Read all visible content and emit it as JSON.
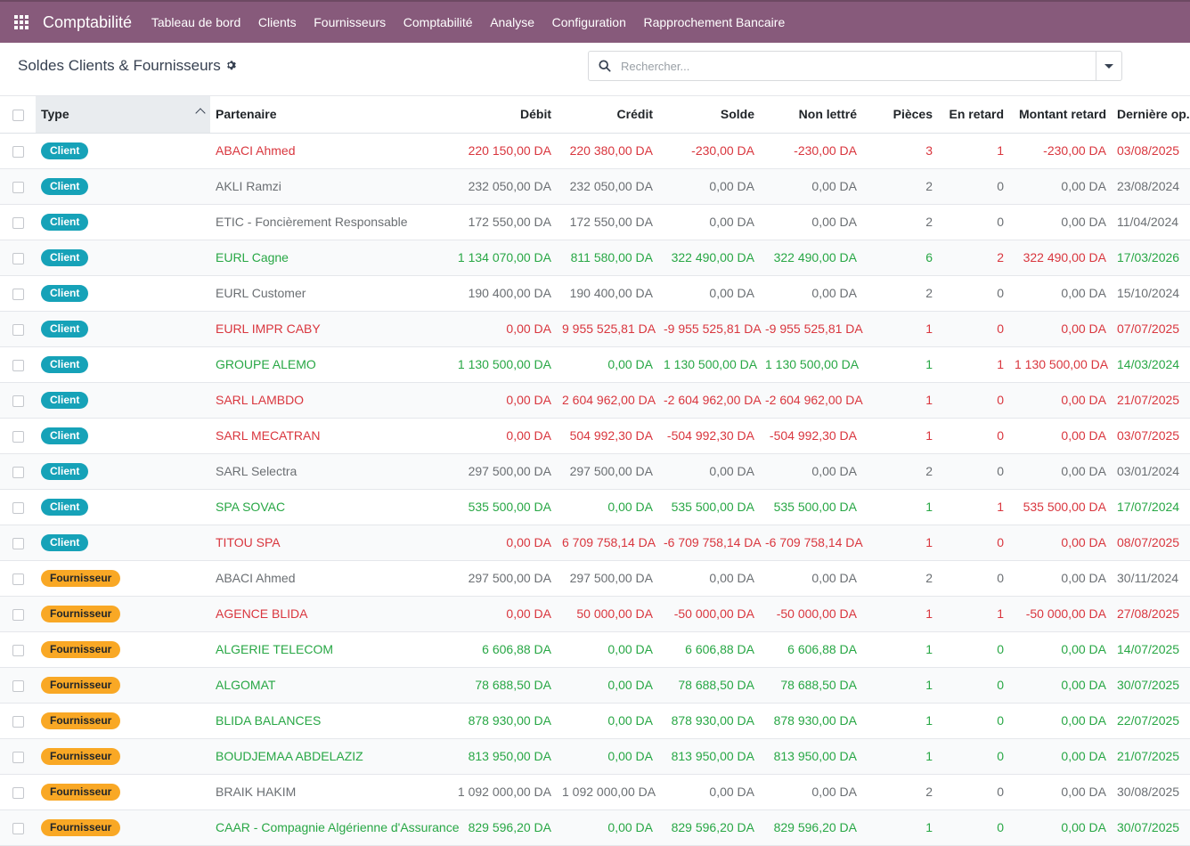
{
  "navbar": {
    "brand": "Comptabilité",
    "menu": [
      "Tableau de bord",
      "Clients",
      "Fournisseurs",
      "Comptabilité",
      "Analyse",
      "Configuration",
      "Rapprochement Bancaire"
    ],
    "color": "#875a7b"
  },
  "control": {
    "title": "Soldes Clients & Fournisseurs",
    "search_placeholder": "Rechercher..."
  },
  "table": {
    "columns": {
      "type": "Type",
      "partner": "Partenaire",
      "debit": "Débit",
      "credit": "Crédit",
      "solde": "Solde",
      "non_lettre": "Non lettré",
      "pieces": "Pièces",
      "en_retard": "En retard",
      "montant_retard": "Montant retard",
      "derniere_op": "Dernière op."
    },
    "status_colors": {
      "red": "#d9363e",
      "green": "#28a745",
      "muted": "#6b6f73"
    },
    "rows": [
      {
        "type": "Client",
        "kind": "client",
        "partner": "ABACI Ahmed",
        "debit": "220 150,00 DA",
        "credit": "220 380,00 DA",
        "solde": "-230,00 DA",
        "non_lettre": "-230,00 DA",
        "pieces": "3",
        "en_retard": "1",
        "montant_retard": "-230,00 DA",
        "derniere_op": "03/08/2025",
        "status": "red"
      },
      {
        "type": "Client",
        "kind": "client",
        "partner": "AKLI Ramzi",
        "debit": "232 050,00 DA",
        "credit": "232 050,00 DA",
        "solde": "0,00 DA",
        "non_lettre": "0,00 DA",
        "pieces": "2",
        "en_retard": "0",
        "montant_retard": "0,00 DA",
        "derniere_op": "23/08/2024",
        "status": "muted"
      },
      {
        "type": "Client",
        "kind": "client",
        "partner": "ETIC - Foncièrement Responsable",
        "debit": "172 550,00 DA",
        "credit": "172 550,00 DA",
        "solde": "0,00 DA",
        "non_lettre": "0,00 DA",
        "pieces": "2",
        "en_retard": "0",
        "montant_retard": "0,00 DA",
        "derniere_op": "11/04/2024",
        "status": "muted"
      },
      {
        "type": "Client",
        "kind": "client",
        "partner": "EURL Cagne",
        "debit": "1 134 070,00 DA",
        "credit": "811 580,00 DA",
        "solde": "322 490,00 DA",
        "non_lettre": "322 490,00 DA",
        "pieces": "6",
        "en_retard": "2",
        "montant_retard": "322 490,00 DA",
        "derniere_op": "17/03/2026",
        "status": "green",
        "late_red": true
      },
      {
        "type": "Client",
        "kind": "client",
        "partner": "EURL Customer",
        "debit": "190 400,00 DA",
        "credit": "190 400,00 DA",
        "solde": "0,00 DA",
        "non_lettre": "0,00 DA",
        "pieces": "2",
        "en_retard": "0",
        "montant_retard": "0,00 DA",
        "derniere_op": "15/10/2024",
        "status": "muted"
      },
      {
        "type": "Client",
        "kind": "client",
        "partner": "EURL IMPR CABY",
        "debit": "0,00 DA",
        "credit": "9 955 525,81 DA",
        "solde": "-9 955 525,81 DA",
        "non_lettre": "-9 955 525,81 DA",
        "pieces": "1",
        "en_retard": "0",
        "montant_retard": "0,00 DA",
        "derniere_op": "07/07/2025",
        "status": "red"
      },
      {
        "type": "Client",
        "kind": "client",
        "partner": "GROUPE ALEMO",
        "debit": "1 130 500,00 DA",
        "credit": "0,00 DA",
        "solde": "1 130 500,00 DA",
        "non_lettre": "1 130 500,00 DA",
        "pieces": "1",
        "en_retard": "1",
        "montant_retard": "1 130 500,00 DA",
        "derniere_op": "14/03/2024",
        "status": "green",
        "late_red": true
      },
      {
        "type": "Client",
        "kind": "client",
        "partner": "SARL LAMBDO",
        "debit": "0,00 DA",
        "credit": "2 604 962,00 DA",
        "solde": "-2 604 962,00 DA",
        "non_lettre": "-2 604 962,00 DA",
        "pieces": "1",
        "en_retard": "0",
        "montant_retard": "0,00 DA",
        "derniere_op": "21/07/2025",
        "status": "red"
      },
      {
        "type": "Client",
        "kind": "client",
        "partner": "SARL MECATRAN",
        "debit": "0,00 DA",
        "credit": "504 992,30 DA",
        "solde": "-504 992,30 DA",
        "non_lettre": "-504 992,30 DA",
        "pieces": "1",
        "en_retard": "0",
        "montant_retard": "0,00 DA",
        "derniere_op": "03/07/2025",
        "status": "red"
      },
      {
        "type": "Client",
        "kind": "client",
        "partner": "SARL Selectra",
        "debit": "297 500,00 DA",
        "credit": "297 500,00 DA",
        "solde": "0,00 DA",
        "non_lettre": "0,00 DA",
        "pieces": "2",
        "en_retard": "0",
        "montant_retard": "0,00 DA",
        "derniere_op": "03/01/2024",
        "status": "muted"
      },
      {
        "type": "Client",
        "kind": "client",
        "partner": "SPA SOVAC",
        "debit": "535 500,00 DA",
        "credit": "0,00 DA",
        "solde": "535 500,00 DA",
        "non_lettre": "535 500,00 DA",
        "pieces": "1",
        "en_retard": "1",
        "montant_retard": "535 500,00 DA",
        "derniere_op": "17/07/2024",
        "status": "green",
        "late_red": true
      },
      {
        "type": "Client",
        "kind": "client",
        "partner": "TITOU SPA",
        "debit": "0,00 DA",
        "credit": "6 709 758,14 DA",
        "solde": "-6 709 758,14 DA",
        "non_lettre": "-6 709 758,14 DA",
        "pieces": "1",
        "en_retard": "0",
        "montant_retard": "0,00 DA",
        "derniere_op": "08/07/2025",
        "status": "red"
      },
      {
        "type": "Fournisseur",
        "kind": "fournisseur",
        "partner": "ABACI Ahmed",
        "debit": "297 500,00 DA",
        "credit": "297 500,00 DA",
        "solde": "0,00 DA",
        "non_lettre": "0,00 DA",
        "pieces": "2",
        "en_retard": "0",
        "montant_retard": "0,00 DA",
        "derniere_op": "30/11/2024",
        "status": "muted"
      },
      {
        "type": "Fournisseur",
        "kind": "fournisseur",
        "partner": "AGENCE BLIDA",
        "debit": "0,00 DA",
        "credit": "50 000,00 DA",
        "solde": "-50 000,00 DA",
        "non_lettre": "-50 000,00 DA",
        "pieces": "1",
        "en_retard": "1",
        "montant_retard": "-50 000,00 DA",
        "derniere_op": "27/08/2025",
        "status": "red"
      },
      {
        "type": "Fournisseur",
        "kind": "fournisseur",
        "partner": "ALGERIE TELECOM",
        "debit": "6 606,88 DA",
        "credit": "0,00 DA",
        "solde": "6 606,88 DA",
        "non_lettre": "6 606,88 DA",
        "pieces": "1",
        "en_retard": "0",
        "montant_retard": "0,00 DA",
        "derniere_op": "14/07/2025",
        "status": "green"
      },
      {
        "type": "Fournisseur",
        "kind": "fournisseur",
        "partner": "ALGOMAT",
        "debit": "78 688,50 DA",
        "credit": "0,00 DA",
        "solde": "78 688,50 DA",
        "non_lettre": "78 688,50 DA",
        "pieces": "1",
        "en_retard": "0",
        "montant_retard": "0,00 DA",
        "derniere_op": "30/07/2025",
        "status": "green"
      },
      {
        "type": "Fournisseur",
        "kind": "fournisseur",
        "partner": "BLIDA BALANCES",
        "debit": "878 930,00 DA",
        "credit": "0,00 DA",
        "solde": "878 930,00 DA",
        "non_lettre": "878 930,00 DA",
        "pieces": "1",
        "en_retard": "0",
        "montant_retard": "0,00 DA",
        "derniere_op": "22/07/2025",
        "status": "green"
      },
      {
        "type": "Fournisseur",
        "kind": "fournisseur",
        "partner": "BOUDJEMAA ABDELAZIZ",
        "debit": "813 950,00 DA",
        "credit": "0,00 DA",
        "solde": "813 950,00 DA",
        "non_lettre": "813 950,00 DA",
        "pieces": "1",
        "en_retard": "0",
        "montant_retard": "0,00 DA",
        "derniere_op": "21/07/2025",
        "status": "green"
      },
      {
        "type": "Fournisseur",
        "kind": "fournisseur",
        "partner": "BRAIK HAKIM",
        "debit": "1 092 000,00 DA",
        "credit": "1 092 000,00 DA",
        "solde": "0,00 DA",
        "non_lettre": "0,00 DA",
        "pieces": "2",
        "en_retard": "0",
        "montant_retard": "0,00 DA",
        "derniere_op": "30/08/2025",
        "status": "muted"
      },
      {
        "type": "Fournisseur",
        "kind": "fournisseur",
        "partner": "CAAR - Compagnie Algérienne d'Assurance",
        "debit": "829 596,20 DA",
        "credit": "0,00 DA",
        "solde": "829 596,20 DA",
        "non_lettre": "829 596,20 DA",
        "pieces": "1",
        "en_retard": "0",
        "montant_retard": "0,00 DA",
        "derniere_op": "30/07/2025",
        "status": "green"
      }
    ]
  }
}
